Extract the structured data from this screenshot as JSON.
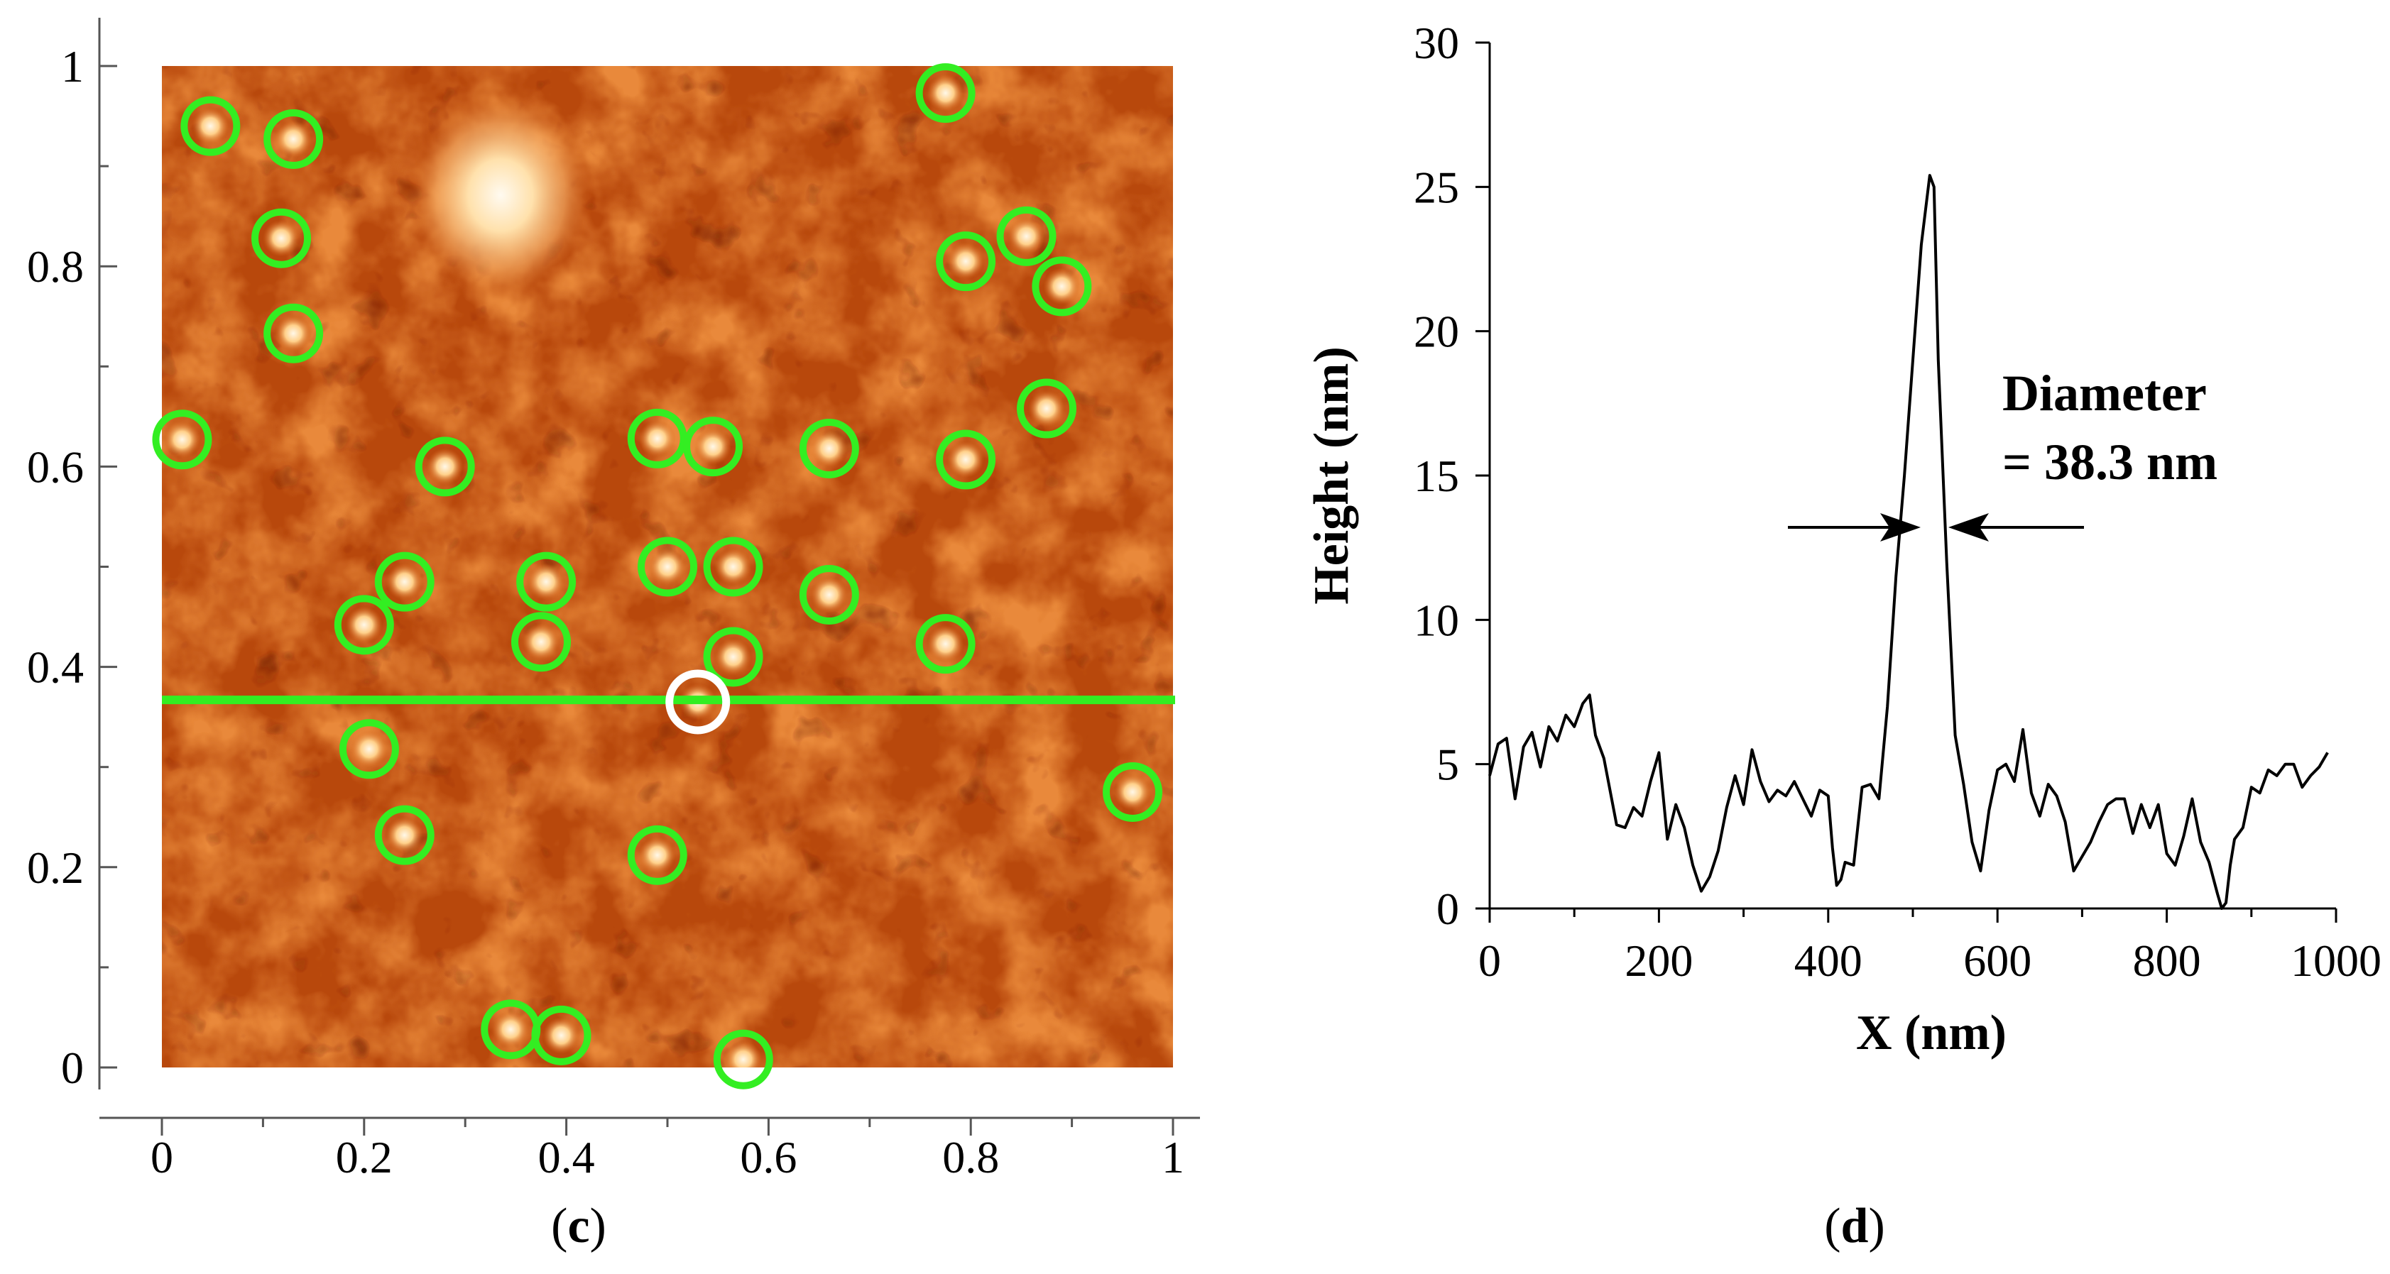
{
  "panels": {
    "c": {
      "label_open": "(",
      "label_letter": "c",
      "label_close": ")"
    },
    "d": {
      "label_open": "(",
      "label_letter": "d",
      "label_close": ")"
    }
  },
  "chart_data": [
    {
      "type": "scatter",
      "panel": "c",
      "description_type": "AFM height image with detected particles circled",
      "x_ticks": [
        "0",
        "0.2",
        "0.4",
        "0.6",
        "0.8",
        "1"
      ],
      "y_ticks": [
        "0",
        "0.2",
        "0.4",
        "0.6",
        "0.8",
        "1"
      ],
      "xlim": [
        0,
        1
      ],
      "ylim": [
        0,
        1
      ],
      "colors": {
        "marker": "#33ee22",
        "selected_marker": "#ffffff",
        "image_low": "#7a1e02",
        "image_high": "#fff3d8"
      },
      "line_profile_y": 0.367,
      "selected_particle": [
        0.53,
        0.365
      ],
      "particles": [
        [
          0.048,
          0.94
        ],
        [
          0.13,
          0.927
        ],
        [
          0.775,
          0.973
        ],
        [
          0.118,
          0.828
        ],
        [
          0.795,
          0.805
        ],
        [
          0.855,
          0.83
        ],
        [
          0.89,
          0.78
        ],
        [
          0.13,
          0.733
        ],
        [
          0.02,
          0.627
        ],
        [
          0.28,
          0.6
        ],
        [
          0.49,
          0.628
        ],
        [
          0.545,
          0.62
        ],
        [
          0.66,
          0.618
        ],
        [
          0.795,
          0.607
        ],
        [
          0.875,
          0.658
        ],
        [
          0.24,
          0.485
        ],
        [
          0.38,
          0.485
        ],
        [
          0.5,
          0.5
        ],
        [
          0.565,
          0.5
        ],
        [
          0.66,
          0.472
        ],
        [
          0.2,
          0.442
        ],
        [
          0.375,
          0.425
        ],
        [
          0.565,
          0.41
        ],
        [
          0.775,
          0.423
        ],
        [
          0.205,
          0.318
        ],
        [
          0.96,
          0.275
        ],
        [
          0.24,
          0.232
        ],
        [
          0.49,
          0.212
        ],
        [
          0.345,
          0.038
        ],
        [
          0.395,
          0.032
        ],
        [
          0.575,
          0.008
        ]
      ]
    },
    {
      "type": "line",
      "panel": "d",
      "xlabel": "X (nm)",
      "ylabel": "Height (nm)",
      "xlim": [
        0,
        1000
      ],
      "ylim": [
        0,
        30
      ],
      "x_ticks": [
        "0",
        "200",
        "400",
        "600",
        "800",
        "1000"
      ],
      "y_ticks": [
        "0",
        "5",
        "10",
        "15",
        "20",
        "25",
        "30"
      ],
      "annotation": {
        "line1": "Diameter",
        "line2": "= 38.3 nm"
      },
      "series": [
        {
          "x": [
            0,
            10,
            20,
            30,
            40,
            50,
            60,
            70,
            80,
            90,
            100,
            110,
            118,
            125,
            135,
            150,
            160,
            170,
            180,
            190,
            200,
            210,
            220,
            230,
            240,
            250,
            260,
            270,
            280,
            290,
            300,
            310,
            320,
            330,
            340,
            350,
            360,
            370,
            380,
            390,
            400,
            405,
            410,
            415,
            420,
            430,
            440,
            450,
            460,
            470,
            480,
            490,
            500,
            510,
            520,
            525,
            530,
            540,
            550,
            560,
            570,
            580,
            590,
            600,
            610,
            620,
            630,
            640,
            650,
            660,
            670,
            680,
            690,
            700,
            710,
            720,
            730,
            740,
            750,
            760,
            770,
            780,
            790,
            800,
            810,
            820,
            830,
            840,
            850,
            860,
            865,
            870,
            875,
            880,
            890,
            900,
            910,
            920,
            930,
            940,
            950,
            960,
            970,
            980,
            990
          ],
          "y": [
            4.6,
            5.7,
            5.9,
            3.8,
            5.6,
            6.1,
            4.9,
            6.3,
            5.8,
            6.7,
            6.3,
            7.1,
            7.4,
            6.0,
            5.2,
            2.9,
            2.8,
            3.5,
            3.2,
            4.4,
            5.4,
            2.4,
            3.6,
            2.8,
            1.5,
            0.6,
            1.1,
            2.0,
            3.5,
            4.6,
            3.6,
            5.5,
            4.4,
            3.7,
            4.1,
            3.9,
            4.4,
            3.8,
            3.2,
            4.1,
            3.9,
            2.1,
            0.8,
            1.0,
            1.6,
            1.5,
            4.2,
            4.3,
            3.8,
            7.0,
            11.5,
            15.0,
            19.0,
            23.0,
            25.4,
            25.0,
            19.0,
            12.0,
            6.0,
            4.3,
            2.3,
            1.3,
            3.4,
            4.8,
            5.0,
            4.4,
            6.2,
            4.0,
            3.2,
            4.3,
            3.9,
            3.0,
            1.3,
            1.8,
            2.3,
            3.0,
            3.6,
            3.8,
            3.8,
            2.6,
            3.6,
            2.8,
            3.6,
            1.9,
            1.5,
            2.5,
            3.8,
            2.3,
            1.6,
            0.5,
            0.0,
            0.2,
            1.5,
            2.4,
            2.8,
            4.2,
            4.0,
            4.8,
            4.6,
            5.0,
            5.0,
            4.2,
            4.6,
            4.9,
            5.4
          ]
        }
      ]
    }
  ]
}
